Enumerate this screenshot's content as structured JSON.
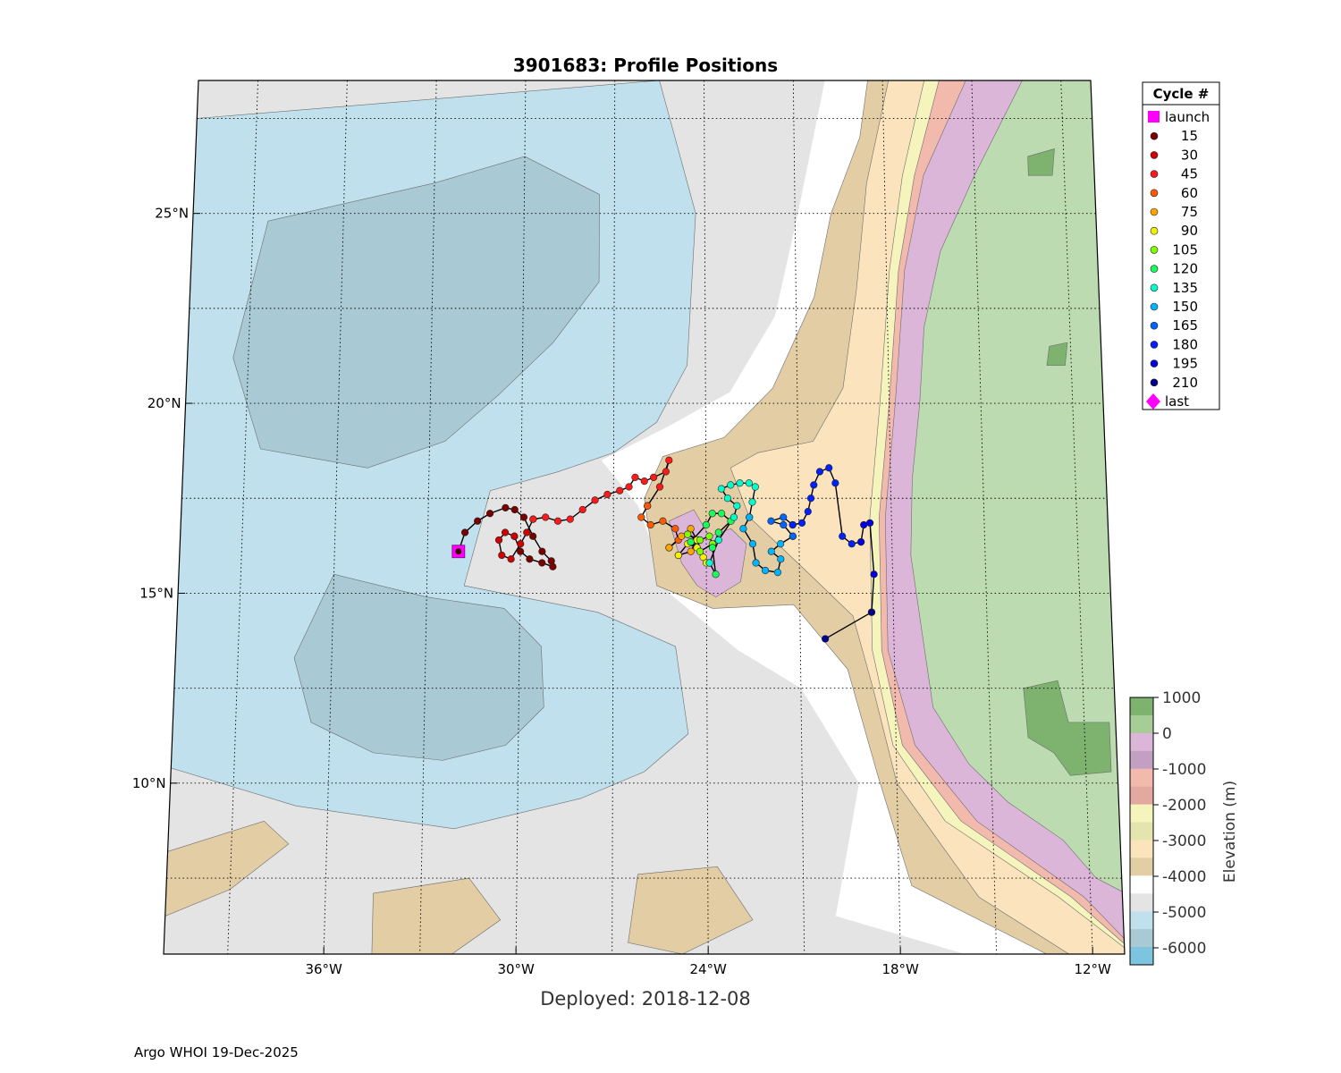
{
  "title": "3901683: Profile Positions",
  "subtitle": "Deployed: 2018-12-08",
  "credit": "Argo WHOI 19-Dec-2025",
  "colors": {
    "ocean_deep": "#a9c9d5",
    "ocean": "#bfe0ec",
    "abyss": "#e4e4e4",
    "white_band": "#ffffff",
    "sand": "#e2cda4",
    "sand_light": "#fbe4bd",
    "yellow_light": "#f6f4bd",
    "salmon": "#f2b9ad",
    "slope_purple": "#dcb6d9",
    "land": "#bcdbb0",
    "land_high": "#7db26f",
    "track": "#000000",
    "launch": "#ff00ff"
  },
  "legend": {
    "title": "Cycle #",
    "items": [
      {
        "label": "launch",
        "color": "#ff00ff",
        "marker": "square"
      },
      {
        "label": "15",
        "color": "#7a0000",
        "marker": "dot"
      },
      {
        "label": "30",
        "color": "#d00000",
        "marker": "dot"
      },
      {
        "label": "45",
        "color": "#ff1a1a",
        "marker": "dot"
      },
      {
        "label": "60",
        "color": "#ff5a00",
        "marker": "dot"
      },
      {
        "label": "75",
        "color": "#ffa500",
        "marker": "dot"
      },
      {
        "label": "90",
        "color": "#f2f200",
        "marker": "dot"
      },
      {
        "label": "105",
        "color": "#7dff00",
        "marker": "dot"
      },
      {
        "label": "120",
        "color": "#18ff5a",
        "marker": "dot"
      },
      {
        "label": "135",
        "color": "#00ffcc",
        "marker": "dot"
      },
      {
        "label": "150",
        "color": "#00b4ff",
        "marker": "dot"
      },
      {
        "label": "165",
        "color": "#0064ff",
        "marker": "dot"
      },
      {
        "label": "180",
        "color": "#0020ff",
        "marker": "dot"
      },
      {
        "label": "195",
        "color": "#0000e0",
        "marker": "dot"
      },
      {
        "label": "210",
        "color": "#00008b",
        "marker": "dot"
      },
      {
        "label": "last",
        "color": "#ff00ff",
        "marker": "diamond"
      }
    ]
  },
  "colorbar": {
    "label": "Elevation (m)",
    "ticks": [
      "1000",
      "0",
      "-1000",
      "-2000",
      "-3000",
      "-4000",
      "-5000",
      "-6000"
    ],
    "bands": [
      "#7db26f",
      "#a5cd95",
      "#dcb6d9",
      "#c3a0c3",
      "#f2b9ad",
      "#e3a8a0",
      "#f6f4bd",
      "#e4e4ae",
      "#fbe4bd",
      "#e2cda4",
      "#ffffff",
      "#e4e4e4",
      "#bfe0ec",
      "#a9c9d5",
      "#7dc4df"
    ]
  },
  "chart_data": {
    "type": "map",
    "title": "3901683: Profile Positions",
    "lon_range": [
      -41,
      -11
    ],
    "lat_range": [
      5.5,
      28.5
    ],
    "x_ticks": [
      "36°W",
      "30°W",
      "24°W",
      "18°W",
      "12°W"
    ],
    "x_tick_values": [
      -36,
      -30,
      -24,
      -18,
      -12
    ],
    "y_ticks": [
      "10°N",
      "15°N",
      "20°N",
      "25°N"
    ],
    "y_tick_values": [
      10,
      15,
      20,
      25
    ],
    "launch": {
      "lon": -32.0,
      "lat": 16.1
    },
    "last": {
      "lon": -20.2,
      "lat": 13.8
    },
    "track_segments": [
      {
        "cycle": 15,
        "color": "#7a0000",
        "points": [
          [
            -32.0,
            16.1
          ],
          [
            -31.8,
            16.6
          ],
          [
            -31.4,
            16.9
          ],
          [
            -31.0,
            17.1
          ],
          [
            -30.5,
            17.25
          ],
          [
            -30.2,
            17.2
          ],
          [
            -29.9,
            17.0
          ],
          [
            -29.6,
            16.5
          ],
          [
            -29.3,
            16.1
          ],
          [
            -29.0,
            15.85
          ],
          [
            -28.95,
            15.7
          ],
          [
            -29.3,
            15.8
          ],
          [
            -29.7,
            15.9
          ],
          [
            -30.0,
            16.1
          ],
          [
            -30.2,
            16.5
          ]
        ]
      },
      {
        "cycle": 30,
        "color": "#d00000",
        "points": [
          [
            -30.2,
            16.5
          ],
          [
            -30.5,
            16.6
          ],
          [
            -30.7,
            16.4
          ],
          [
            -30.6,
            16.0
          ],
          [
            -30.3,
            15.9
          ],
          [
            -30.0,
            16.3
          ],
          [
            -29.8,
            16.6
          ],
          [
            -29.6,
            16.95
          ]
        ]
      },
      {
        "cycle": 45,
        "color": "#ff1a1a",
        "points": [
          [
            -29.6,
            16.95
          ],
          [
            -29.2,
            17.0
          ],
          [
            -28.8,
            16.9
          ],
          [
            -28.4,
            16.95
          ],
          [
            -28.0,
            17.2
          ],
          [
            -27.6,
            17.45
          ],
          [
            -27.2,
            17.6
          ],
          [
            -26.8,
            17.7
          ],
          [
            -26.5,
            17.8
          ],
          [
            -26.3,
            18.05
          ],
          [
            -26.0,
            17.95
          ],
          [
            -25.7,
            18.05
          ],
          [
            -25.3,
            18.2
          ],
          [
            -25.2,
            18.5
          ],
          [
            -25.5,
            17.8
          ],
          [
            -25.9,
            17.3
          ]
        ]
      },
      {
        "cycle": 60,
        "color": "#ff5a00",
        "points": [
          [
            -25.9,
            17.3
          ],
          [
            -26.1,
            17.0
          ],
          [
            -25.8,
            16.8
          ],
          [
            -25.4,
            16.9
          ],
          [
            -25.0,
            16.7
          ],
          [
            -24.9,
            16.4
          ],
          [
            -25.2,
            16.2
          ]
        ]
      },
      {
        "cycle": 75,
        "color": "#ffa500",
        "points": [
          [
            -25.2,
            16.2
          ],
          [
            -24.8,
            16.5
          ],
          [
            -24.5,
            16.7
          ],
          [
            -24.3,
            16.4
          ],
          [
            -24.5,
            16.1
          ],
          [
            -24.9,
            16.0
          ]
        ]
      },
      {
        "cycle": 90,
        "color": "#f2f200",
        "points": [
          [
            -24.9,
            16.0
          ],
          [
            -24.6,
            16.3
          ],
          [
            -24.3,
            16.2
          ],
          [
            -24.1,
            15.95
          ],
          [
            -24.0,
            15.8
          ],
          [
            -24.3,
            16.4
          ],
          [
            -24.6,
            16.55
          ]
        ]
      },
      {
        "cycle": 105,
        "color": "#7dff00",
        "points": [
          [
            -24.6,
            16.55
          ],
          [
            -24.2,
            16.4
          ],
          [
            -23.9,
            16.5
          ],
          [
            -23.8,
            16.3
          ],
          [
            -24.2,
            16.1
          ],
          [
            -24.5,
            16.35
          ]
        ]
      },
      {
        "cycle": 120,
        "color": "#18ff5a",
        "points": [
          [
            -24.5,
            16.35
          ],
          [
            -24.0,
            16.8
          ],
          [
            -23.8,
            17.1
          ],
          [
            -23.5,
            17.1
          ],
          [
            -23.2,
            16.9
          ],
          [
            -23.6,
            16.6
          ],
          [
            -23.8,
            16.2
          ],
          [
            -23.7,
            15.5
          ],
          [
            -23.9,
            15.8
          ]
        ]
      },
      {
        "cycle": 135,
        "color": "#00ffcc",
        "points": [
          [
            -23.9,
            15.8
          ],
          [
            -23.6,
            16.4
          ],
          [
            -23.1,
            17.0
          ],
          [
            -23.0,
            17.3
          ],
          [
            -23.3,
            17.5
          ],
          [
            -23.5,
            17.75
          ],
          [
            -23.2,
            17.85
          ],
          [
            -22.9,
            17.9
          ],
          [
            -22.6,
            17.9
          ],
          [
            -22.4,
            17.8
          ],
          [
            -22.5,
            17.4
          ],
          [
            -22.6,
            17.0
          ]
        ]
      },
      {
        "cycle": 150,
        "color": "#00b4ff",
        "points": [
          [
            -22.6,
            17.0
          ],
          [
            -22.8,
            16.7
          ],
          [
            -22.5,
            16.3
          ],
          [
            -22.4,
            15.8
          ],
          [
            -22.1,
            15.6
          ],
          [
            -21.7,
            15.55
          ],
          [
            -21.6,
            15.9
          ],
          [
            -21.9,
            16.1
          ],
          [
            -21.6,
            16.3
          ],
          [
            -21.2,
            16.5
          ]
        ]
      },
      {
        "cycle": 165,
        "color": "#0064ff",
        "points": [
          [
            -21.2,
            16.5
          ],
          [
            -21.5,
            16.8
          ],
          [
            -21.9,
            16.9
          ],
          [
            -21.5,
            17.0
          ],
          [
            -21.2,
            16.8
          ]
        ]
      },
      {
        "cycle": 180,
        "color": "#0020ff",
        "points": [
          [
            -21.2,
            16.8
          ],
          [
            -20.9,
            16.85
          ],
          [
            -20.7,
            17.15
          ],
          [
            -20.6,
            17.5
          ],
          [
            -20.5,
            17.85
          ],
          [
            -20.3,
            18.2
          ],
          [
            -20.0,
            18.3
          ],
          [
            -19.8,
            17.9
          ],
          [
            -19.6,
            16.5
          ],
          [
            -19.3,
            16.3
          ],
          [
            -19.0,
            16.35
          ]
        ]
      },
      {
        "cycle": 195,
        "color": "#0000e0",
        "points": [
          [
            -19.0,
            16.35
          ],
          [
            -18.9,
            16.8
          ],
          [
            -18.7,
            16.85
          ],
          [
            -18.6,
            15.5
          ],
          [
            -18.7,
            14.5
          ]
        ]
      },
      {
        "cycle": 210,
        "color": "#00008b",
        "points": [
          [
            -18.7,
            14.5
          ],
          [
            -20.2,
            13.8
          ]
        ]
      }
    ]
  }
}
